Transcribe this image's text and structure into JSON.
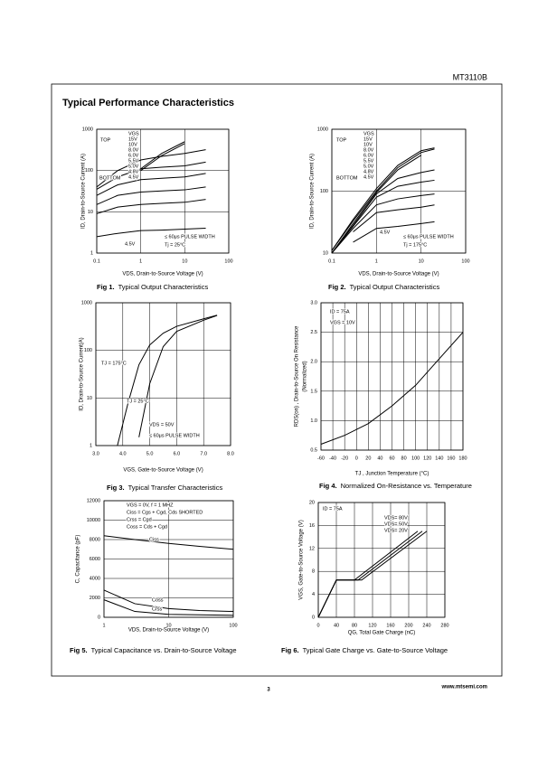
{
  "header": {
    "doc_id": "MT3110B"
  },
  "title": "Typical Performance Characteristics",
  "footer": {
    "page": 3,
    "url": "www.mtsemi.com"
  },
  "chart_data": [
    {
      "type": "line",
      "fig_label": "Fig 1.",
      "title": "Typical Output Characteristics",
      "x_label": "VDS, Drain-to-Source Voltage (V)",
      "y_label": "ID, Drain-to-Source Current (A)",
      "xscale": "log",
      "yscale": "log",
      "grid": true,
      "xlim": [
        0.1,
        100
      ],
      "ylim": [
        1,
        1000
      ],
      "xticks": [
        0.1,
        1,
        10,
        100
      ],
      "yticks": [
        1,
        10,
        100,
        1000
      ],
      "x": [
        0.1,
        0.3,
        1,
        3,
        10,
        30
      ],
      "series": [
        {
          "name": "15V",
          "color": "#000",
          "values": [
            null,
            null,
            110,
            260,
            500,
            null
          ]
        },
        {
          "name": "10V",
          "color": "#000",
          "values": [
            null,
            null,
            100,
            230,
            450,
            null
          ]
        },
        {
          "name": "8.0V",
          "color": "#000",
          "values": [
            40,
            100,
            180,
            220,
            260,
            320
          ]
        },
        {
          "name": "6.0V",
          "color": "#000",
          "values": [
            35,
            70,
            110,
            120,
            130,
            160
          ]
        },
        {
          "name": "5.5V",
          "color": "#000",
          "values": [
            25,
            45,
            60,
            65,
            70,
            85
          ]
        },
        {
          "name": "5.0V",
          "color": "#000",
          "values": [
            15,
            25,
            30,
            32,
            34,
            40
          ]
        },
        {
          "name": "4.8V",
          "color": "#000",
          "values": [
            9,
            13,
            15,
            16,
            17,
            20
          ]
        },
        {
          "name": "4.5V",
          "color": "#000",
          "values": [
            2.5,
            3,
            3.5,
            3.6,
            3.8,
            4
          ]
        }
      ],
      "annotations": [
        "VGS",
        "TOP",
        "BOTTOM",
        "≤ 60μs PULSE WIDTH",
        "Tj = 25°C",
        "4.5V"
      ]
    },
    {
      "type": "line",
      "fig_label": "Fig 2.",
      "title": "Typical Output Characteristics",
      "x_label": "VDS, Drain-to-Source Voltage (V)",
      "y_label": "ID, Drain-to-Source Current (A)",
      "xscale": "log",
      "yscale": "log",
      "grid": true,
      "xlim": [
        0.1,
        100
      ],
      "ylim": [
        10,
        1000
      ],
      "xticks": [
        0.1,
        1,
        10,
        100
      ],
      "yticks": [
        10,
        100,
        1000
      ],
      "x": [
        0.1,
        0.3,
        1,
        3,
        10,
        20
      ],
      "series": [
        {
          "name": "15V",
          "color": "#000",
          "values": [
            11,
            35,
            110,
            260,
            450,
            500
          ]
        },
        {
          "name": "10V",
          "color": "#000",
          "values": [
            11,
            33,
            100,
            240,
            420,
            480
          ]
        },
        {
          "name": "8.0V",
          "color": "#000",
          "values": [
            10,
            30,
            95,
            220,
            380,
            null
          ]
        },
        {
          "name": "6.0V",
          "color": "#000",
          "values": [
            10,
            28,
            90,
            160,
            200,
            220
          ]
        },
        {
          "name": "5.5V",
          "color": "#000",
          "values": [
            10,
            27,
            80,
            120,
            140,
            150
          ]
        },
        {
          "name": "5.0V",
          "color": "#000",
          "values": [
            10,
            25,
            60,
            75,
            85,
            90
          ]
        },
        {
          "name": "4.8V",
          "color": "#000",
          "values": [
            null,
            22,
            45,
            50,
            55,
            60
          ]
        },
        {
          "name": "4.5V",
          "color": "#000",
          "values": [
            null,
            15,
            25,
            27,
            30,
            32
          ]
        }
      ],
      "annotations": [
        "VGS",
        "TOP",
        "BOTTOM",
        "≤ 60μs PULSE WIDTH",
        "Tj = 175°C",
        "4.5V"
      ]
    },
    {
      "type": "line",
      "fig_label": "Fig 3.",
      "title": "Typical Transfer Characteristics",
      "x_label": "VGS, Gate-to-Source Voltage (V)",
      "y_label": "ID, Drain-to-Source Current(A)",
      "xscale": "linear",
      "yscale": "log",
      "grid": true,
      "xlim": [
        3,
        8
      ],
      "ylim": [
        1,
        1000
      ],
      "xticks": [
        {
          "value": 3,
          "label": "3.0"
        },
        {
          "value": 4,
          "label": "4.0"
        },
        {
          "value": 5,
          "label": "5.0"
        },
        {
          "value": 6,
          "label": "6.0"
        },
        {
          "value": 7,
          "label": "7.0"
        },
        {
          "value": 8,
          "label": "8.0"
        }
      ],
      "yticks": [
        1,
        10,
        100,
        1000
      ],
      "x": [
        3.8,
        4.2,
        4.6,
        5.0,
        5.5,
        6.0,
        7.0,
        7.5
      ],
      "series": [
        {
          "name": "TJ = 175°C",
          "color": "#000",
          "values": [
            1,
            8,
            50,
            130,
            230,
            320,
            460,
            550
          ]
        },
        {
          "name": "TJ = 25°C",
          "color": "#000",
          "values": [
            null,
            null,
            1.5,
            20,
            120,
            250,
            430,
            540
          ]
        }
      ],
      "annotations": [
        "VDS = 50V",
        "≤ 60μs PULSE WIDTH"
      ]
    },
    {
      "type": "line",
      "fig_label": "Fig 4.",
      "title": "Normalized On-Resistance vs. Temperature",
      "x_label": "TJ , Junction Temperature (°C)",
      "y_label": "RDS(on) , Drain-to-Source On Resistance",
      "y_label_2": "(Normalized)",
      "xscale": "linear",
      "yscale": "linear",
      "grid": true,
      "xlim": [
        -60,
        180
      ],
      "ylim": [
        0.5,
        3
      ],
      "xticks": [
        -60,
        -40,
        -20,
        0,
        20,
        40,
        60,
        80,
        100,
        120,
        140,
        160,
        180
      ],
      "yticks": [
        0.5,
        {
          "value": 1,
          "label": "1.0"
        },
        1.5,
        {
          "value": 2,
          "label": "2.0"
        },
        2.5,
        {
          "value": 3,
          "label": "3.0"
        }
      ],
      "x": [
        -60,
        -20,
        20,
        60,
        100,
        140,
        180
      ],
      "series": [
        {
          "name": null,
          "color": "#000",
          "values": [
            0.6,
            0.75,
            0.95,
            1.25,
            1.6,
            2.05,
            2.5
          ]
        }
      ],
      "annotations": [
        "ID = 75A",
        "VGS = 10V"
      ]
    },
    {
      "type": "line",
      "fig_label": "Fig 5.",
      "title": "Typical Capacitance vs. Drain-to-Source Voltage",
      "x_label": "VDS, Drain-to-Source Voltage (V)",
      "y_label": "C, Capacitance (pF)",
      "xscale": "log",
      "yscale": "linear",
      "grid": true,
      "xlim": [
        1,
        100
      ],
      "ylim": [
        0,
        12000
      ],
      "xticks": [
        1,
        10,
        100
      ],
      "yticks": [
        0,
        2000,
        4000,
        6000,
        8000,
        10000,
        12000
      ],
      "x": [
        1,
        3,
        10,
        30,
        100
      ],
      "series": [
        {
          "name": "Ciss",
          "color": "#000",
          "values": [
            8400,
            8000,
            7600,
            7300,
            7000
          ]
        },
        {
          "name": "Coss",
          "color": "#000",
          "values": [
            2800,
            1400,
            900,
            700,
            600
          ]
        },
        {
          "name": "Crss",
          "color": "#000",
          "values": [
            1800,
            600,
            300,
            250,
            200
          ]
        }
      ],
      "annotations": [
        "VGS = 0V,    f = 1 MHZ",
        "Ciss = Cgs + Cgd, Cds SHORTED",
        "Crss = Cgd",
        "Coss = Cds + Cgd"
      ]
    },
    {
      "type": "line",
      "fig_label": "Fig 6.",
      "title": "Typical Gate Charge vs. Gate-to-Source Voltage",
      "x_label": "QG, Total Gate Charge (nC)",
      "y_label": "VGS, Gate-to-Source Voltage (V)",
      "xscale": "linear",
      "yscale": "linear",
      "grid": true,
      "xlim": [
        0,
        280
      ],
      "ylim": [
        0,
        20
      ],
      "xticks": [
        0,
        40,
        80,
        120,
        160,
        200,
        240,
        280
      ],
      "yticks": [
        0,
        4,
        8,
        12,
        16,
        20
      ],
      "series": [
        {
          "name": "VDS= 80V",
          "color": "#000",
          "x": [
            0,
            40,
            96,
            240
          ],
          "values": [
            0,
            6.5,
            6.5,
            15
          ]
        },
        {
          "name": "VDS= 50V",
          "color": "#000",
          "x": [
            0,
            40,
            88,
            230
          ],
          "values": [
            0,
            6.5,
            6.5,
            15
          ]
        },
        {
          "name": "VDS= 20V",
          "color": "#000",
          "x": [
            0,
            40,
            80,
            220
          ],
          "values": [
            0,
            6.5,
            6.5,
            15
          ]
        }
      ],
      "annotations": [
        "ID = 75A"
      ]
    }
  ]
}
